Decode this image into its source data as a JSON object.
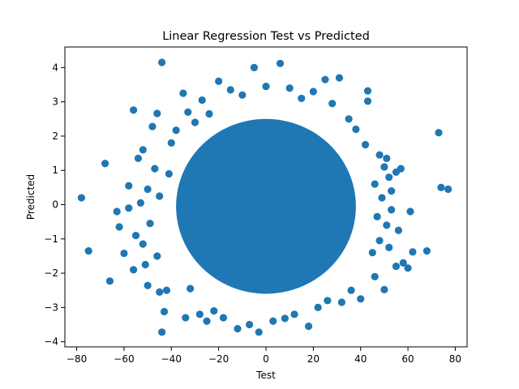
{
  "chart_data": {
    "type": "scatter",
    "title": "Linear Regression Test vs Predicted",
    "xlabel": "Test",
    "ylabel": "Predicted",
    "xlim": [
      -85,
      85
    ],
    "ylim": [
      -4.15,
      4.6
    ],
    "x_ticks": [
      -80,
      -60,
      -40,
      -20,
      0,
      20,
      40,
      60,
      80
    ],
    "y_ticks": [
      -4,
      -3,
      -2,
      -1,
      0,
      1,
      2,
      3,
      4
    ],
    "grid": false,
    "marker_color": "#1f77b4",
    "series": [
      {
        "points": [
          [
            -78,
            0.2
          ],
          [
            -75,
            -1.35
          ],
          [
            -68,
            1.2
          ],
          [
            -66,
            -2.23
          ],
          [
            -63,
            -0.2
          ],
          [
            -60,
            -1.42
          ],
          [
            -58,
            0.55
          ],
          [
            -56,
            2.76
          ],
          [
            -55,
            -0.9
          ],
          [
            -53,
            0.05
          ],
          [
            -52,
            1.6
          ],
          [
            -51,
            -1.75
          ],
          [
            -50,
            -2.36
          ],
          [
            -48,
            2.28
          ],
          [
            -46,
            2.66
          ],
          [
            -45,
            -2.55
          ],
          [
            -44,
            -3.72
          ],
          [
            -44,
            4.15
          ],
          [
            -43,
            -3.12
          ],
          [
            -42,
            -2.5
          ],
          [
            -41,
            0.9
          ],
          [
            -40,
            1.8
          ],
          [
            -38,
            2.17
          ],
          [
            -35,
            3.25
          ],
          [
            -34,
            -3.3
          ],
          [
            -33,
            2.7
          ],
          [
            -32,
            -2.45
          ],
          [
            -30,
            2.4
          ],
          [
            -28,
            -3.2
          ],
          [
            -27,
            3.05
          ],
          [
            -25,
            -3.4
          ],
          [
            -24,
            2.65
          ],
          [
            -22,
            -3.1
          ],
          [
            -20,
            3.6
          ],
          [
            -18,
            -3.3
          ],
          [
            -15,
            3.35
          ],
          [
            -12,
            -3.62
          ],
          [
            -10,
            3.2
          ],
          [
            -7,
            -3.5
          ],
          [
            -5,
            4.0
          ],
          [
            -3,
            -3.72
          ],
          [
            0,
            3.45
          ],
          [
            3,
            -3.4
          ],
          [
            6,
            4.12
          ],
          [
            8,
            -3.32
          ],
          [
            10,
            3.4
          ],
          [
            12,
            -3.2
          ],
          [
            15,
            3.1
          ],
          [
            18,
            -3.55
          ],
          [
            20,
            3.3
          ],
          [
            22,
            -3.0
          ],
          [
            25,
            3.65
          ],
          [
            26,
            -2.8
          ],
          [
            28,
            2.95
          ],
          [
            31,
            3.7
          ],
          [
            32,
            -2.85
          ],
          [
            35,
            2.5
          ],
          [
            36,
            -2.5
          ],
          [
            38,
            2.2
          ],
          [
            40,
            -2.75
          ],
          [
            42,
            1.75
          ],
          [
            43,
            3.32
          ],
          [
            43,
            3.02
          ],
          [
            45,
            -1.4
          ],
          [
            46,
            -2.1
          ],
          [
            48,
            1.45
          ],
          [
            50,
            -2.48
          ],
          [
            51,
            1.35
          ],
          [
            52,
            0.8
          ],
          [
            53,
            -0.15
          ],
          [
            55,
            -1.8
          ],
          [
            57,
            1.05
          ],
          [
            58,
            -1.7
          ],
          [
            60,
            -1.85
          ],
          [
            61,
            -0.2
          ],
          [
            62,
            -1.38
          ],
          [
            68,
            -1.35
          ],
          [
            73,
            2.1
          ],
          [
            74,
            0.5
          ],
          [
            77,
            0.45
          ],
          [
            -62,
            -0.65
          ],
          [
            -58,
            -0.1
          ],
          [
            -56,
            -1.9
          ],
          [
            -54,
            1.35
          ],
          [
            -52,
            -1.15
          ],
          [
            -50,
            0.45
          ],
          [
            -49,
            -0.55
          ],
          [
            -47,
            1.05
          ],
          [
            -46,
            -1.5
          ],
          [
            -45,
            0.25
          ],
          [
            46,
            0.6
          ],
          [
            47,
            -0.35
          ],
          [
            48,
            -1.05
          ],
          [
            49,
            0.2
          ],
          [
            50,
            1.1
          ],
          [
            51,
            -0.6
          ],
          [
            52,
            -1.25
          ],
          [
            53,
            0.4
          ],
          [
            55,
            0.95
          ],
          [
            56,
            -0.75
          ]
        ]
      }
    ]
  }
}
